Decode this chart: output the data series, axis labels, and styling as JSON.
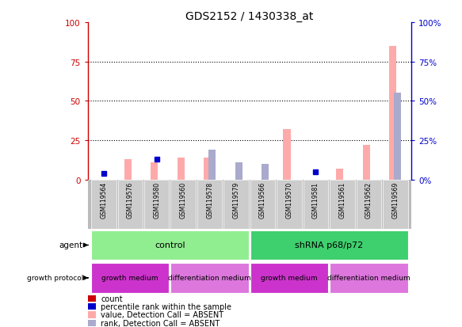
{
  "title": "GDS2152 / 1430338_at",
  "samples": [
    "GSM119564",
    "GSM119576",
    "GSM119580",
    "GSM119560",
    "GSM119578",
    "GSM119579",
    "GSM119566",
    "GSM119570",
    "GSM119581",
    "GSM119561",
    "GSM119562",
    "GSM119569"
  ],
  "value_absent": [
    0,
    13,
    11,
    14,
    14,
    0,
    0,
    32,
    0,
    7,
    22,
    85
  ],
  "rank_absent": [
    0,
    0,
    0,
    0,
    19,
    11,
    10,
    0,
    0,
    0,
    0,
    55
  ],
  "count_present": [
    0,
    0,
    0,
    0,
    0,
    0,
    0,
    0,
    0,
    0,
    0,
    0
  ],
  "rank_present": [
    4,
    0,
    13,
    0,
    0,
    0,
    0,
    0,
    5,
    0,
    0,
    0
  ],
  "ylim": [
    0,
    100
  ],
  "yticks": [
    0,
    25,
    50,
    75,
    100
  ],
  "agent_groups": [
    {
      "label": "control",
      "start": 0,
      "end": 6,
      "color": "#90ee90"
    },
    {
      "label": "shRNA p68/p72",
      "start": 6,
      "end": 12,
      "color": "#3ecf6e"
    }
  ],
  "growth_groups": [
    {
      "label": "growth medium",
      "start": 0,
      "end": 3,
      "color": "#cc33cc"
    },
    {
      "label": "differentiation medium",
      "start": 3,
      "end": 6,
      "color": "#dd77dd"
    },
    {
      "label": "growth medium",
      "start": 6,
      "end": 9,
      "color": "#cc33cc"
    },
    {
      "label": "differentiation medium",
      "start": 9,
      "end": 12,
      "color": "#dd77dd"
    }
  ],
  "legend_items": [
    {
      "label": "count",
      "color": "#cc0000"
    },
    {
      "label": "percentile rank within the sample",
      "color": "#0000cc"
    },
    {
      "label": "value, Detection Call = ABSENT",
      "color": "#ffaaaa"
    },
    {
      "label": "rank, Detection Call = ABSENT",
      "color": "#aaaacc"
    }
  ],
  "left_axis_color": "#cc0000",
  "right_axis_color": "#0000cc",
  "sample_box_color": "#cccccc",
  "sample_box_edge": "#ffffff"
}
